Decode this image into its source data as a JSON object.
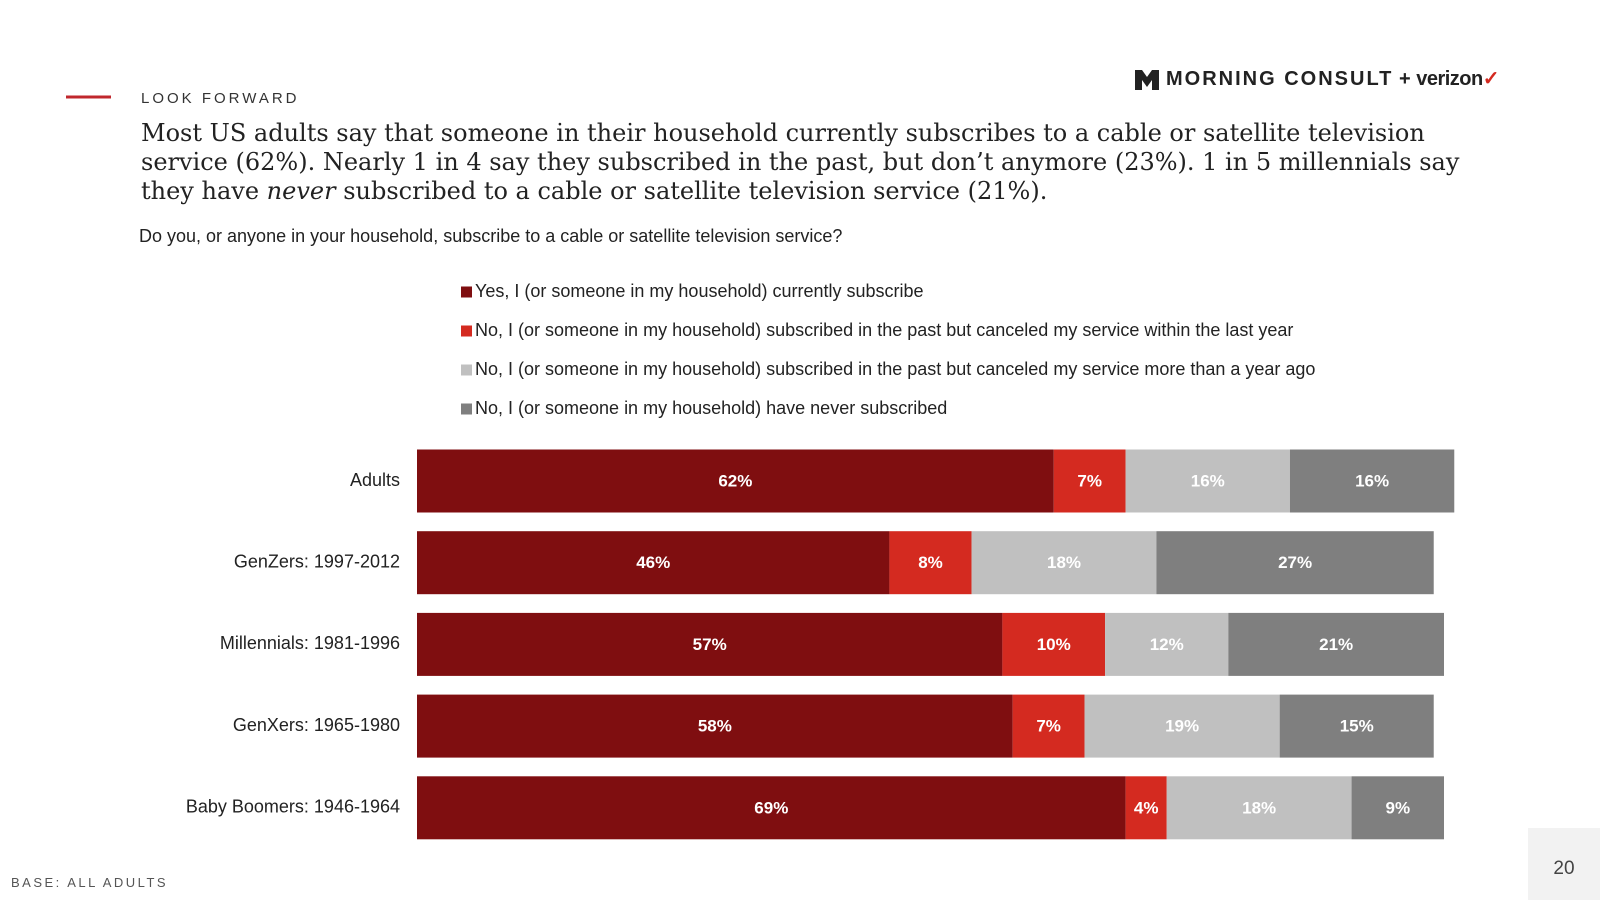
{
  "section_label": "LOOK FORWARD",
  "logo": {
    "brand": "MORNING CONSULT",
    "joiner": "+",
    "partner": "verizon"
  },
  "headline": [
    "Most US adults say that someone in their household currently subscribes to a cable or satellite television service (62%). Nearly 1 in 4 say they subscribed in the past, but don’t anymore (23%). 1 in 5 millennials say they have",
    "never",
    "subscribed to a cable or satellite television service (21%)."
  ],
  "question": "Do you, or anyone in your household, subscribe to a cable or satellite television service?",
  "base_note": "BASE: ALL ADULTS",
  "page_number": "20",
  "chart_data": {
    "type": "stacked-bar",
    "orientation": "horizontal",
    "categories": [
      "Adults",
      "GenZers: 1997-2012",
      "Millennials: 1981-1996",
      "GenXers: 1965-1980",
      "Baby Boomers: 1946-1964"
    ],
    "xlim": [
      0,
      100
    ],
    "series": [
      {
        "name": "Yes, I (or someone in my household) currently subscribe",
        "color": "#7f0e10",
        "values": [
          62,
          46,
          57,
          58,
          69
        ],
        "value_labels": [
          "62%",
          "46%",
          "57%",
          "58%",
          "69%"
        ]
      },
      {
        "name": "No, I (or someone in my household) subscribed in the past but canceled my service within the last year",
        "color": "#d42a20",
        "values": [
          7,
          8,
          10,
          7,
          4
        ],
        "value_labels": [
          "7%",
          "8%",
          "10%",
          "7%",
          "4%"
        ]
      },
      {
        "name": "No, I (or someone in my household) subscribed in the past but canceled my service more than a year ago",
        "color": "#c0c0c0",
        "values": [
          16,
          18,
          12,
          19,
          18
        ],
        "value_labels": [
          "16%",
          "18%",
          "12%",
          "19%",
          "18%"
        ]
      },
      {
        "name": "No, I (or someone in my household) have never subscribed",
        "color": "#7f7f7f",
        "values": [
          16,
          27,
          21,
          15,
          9
        ],
        "value_labels": [
          "16%",
          "27%",
          "21%",
          "15%",
          "9%"
        ]
      }
    ]
  }
}
